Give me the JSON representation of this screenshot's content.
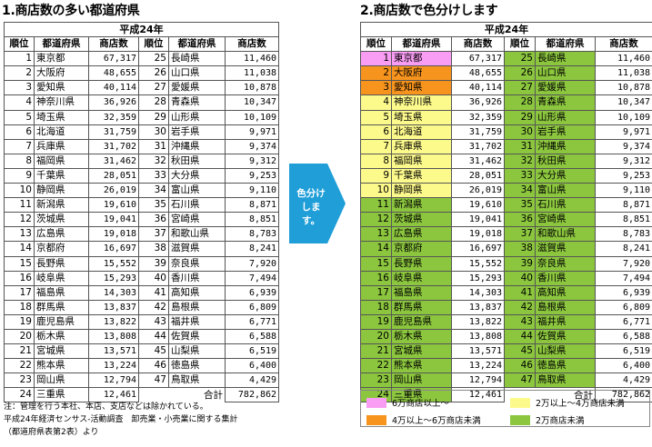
{
  "left_title": "1.商店数の多い都道府県",
  "right_title": "2.商店数で色分けします",
  "era": "平成24年",
  "headers": [
    "順位",
    "都道府県",
    "商店数"
  ],
  "left_col": [
    [
      "1",
      "東京都",
      "67,317"
    ],
    [
      "2",
      "大阪府",
      "48,655"
    ],
    [
      "3",
      "愛知県",
      "40,114"
    ],
    [
      "4",
      "神奈川県",
      "36,926"
    ],
    [
      "5",
      "埼玉県",
      "32,359"
    ],
    [
      "6",
      "北海道",
      "31,759"
    ],
    [
      "7",
      "兵庫県",
      "31,702"
    ],
    [
      "8",
      "福岡県",
      "31,462"
    ],
    [
      "9",
      "千葉県",
      "28,051"
    ],
    [
      "10",
      "静岡県",
      "26,019"
    ],
    [
      "11",
      "新潟県",
      "19,610"
    ],
    [
      "12",
      "茨城県",
      "19,041"
    ],
    [
      "13",
      "広島県",
      "19,018"
    ],
    [
      "14",
      "京都府",
      "16,697"
    ],
    [
      "15",
      "長野県",
      "15,552"
    ],
    [
      "16",
      "岐阜県",
      "15,293"
    ],
    [
      "17",
      "福島県",
      "14,303"
    ],
    [
      "18",
      "群馬県",
      "13,837"
    ],
    [
      "19",
      "鹿児島県",
      "13,822"
    ],
    [
      "20",
      "栃木県",
      "13,808"
    ],
    [
      "21",
      "宮城県",
      "13,571"
    ],
    [
      "22",
      "熊本県",
      "13,224"
    ],
    [
      "23",
      "岡山県",
      "12,794"
    ],
    [
      "24",
      "三重県",
      "12,461"
    ]
  ],
  "right_col": [
    [
      "25",
      "長崎県",
      "11,460"
    ],
    [
      "26",
      "山口県",
      "11,038"
    ],
    [
      "27",
      "愛媛県",
      "10,878"
    ],
    [
      "28",
      "青森県",
      "10,347"
    ],
    [
      "29",
      "山形県",
      "10,109"
    ],
    [
      "30",
      "岩手県",
      "9,971"
    ],
    [
      "31",
      "沖縄県",
      "9,374"
    ],
    [
      "32",
      "秋田県",
      "9,312"
    ],
    [
      "33",
      "大分県",
      "9,253"
    ],
    [
      "34",
      "富山県",
      "9,110"
    ],
    [
      "35",
      "石川県",
      "8,871"
    ],
    [
      "36",
      "宮崎県",
      "8,851"
    ],
    [
      "37",
      "和歌山県",
      "8,783"
    ],
    [
      "38",
      "滋賀県",
      "8,241"
    ],
    [
      "39",
      "奈良県",
      "7,920"
    ],
    [
      "40",
      "香川県",
      "7,494"
    ],
    [
      "41",
      "高知県",
      "6,939"
    ],
    [
      "42",
      "島根県",
      "6,809"
    ],
    [
      "43",
      "福井県",
      "6,771"
    ],
    [
      "44",
      "佐賀県",
      "6,588"
    ],
    [
      "45",
      "山梨県",
      "6,519"
    ],
    [
      "46",
      "徳島県",
      "6,400"
    ],
    [
      "47",
      "鳥取県",
      "4,429"
    ]
  ],
  "total_label": "合計",
  "total_value": "782,862",
  "arrow_label": "色分けします。",
  "colors": {
    "pink": "#f99cf3",
    "orange": "#f7941d",
    "yellow": "#fdfa8c",
    "green": "#8cc63e",
    "arrow": "#1f9ed8"
  },
  "tiers": {
    "pink": [
      "1"
    ],
    "orange": [
      "2",
      "3"
    ],
    "yellow": [
      "4",
      "5",
      "6",
      "7",
      "8",
      "9",
      "10"
    ]
  },
  "notes": [
    "注：管理を行う本社、本店、支店などは除かれている。",
    "平成24年経済センサス-活動調査　卸売業・小売業に関する集計",
    "（都道府県表第2表）より"
  ],
  "legend": [
    {
      "label": "6万商店以上～",
      "color": "pink"
    },
    {
      "label": "2万以上～4万商店未満",
      "color": "yellow"
    },
    {
      "label": "4万以上～6万商店未満",
      "color": "orange"
    },
    {
      "label": "2万商店未満",
      "color": "green"
    }
  ]
}
